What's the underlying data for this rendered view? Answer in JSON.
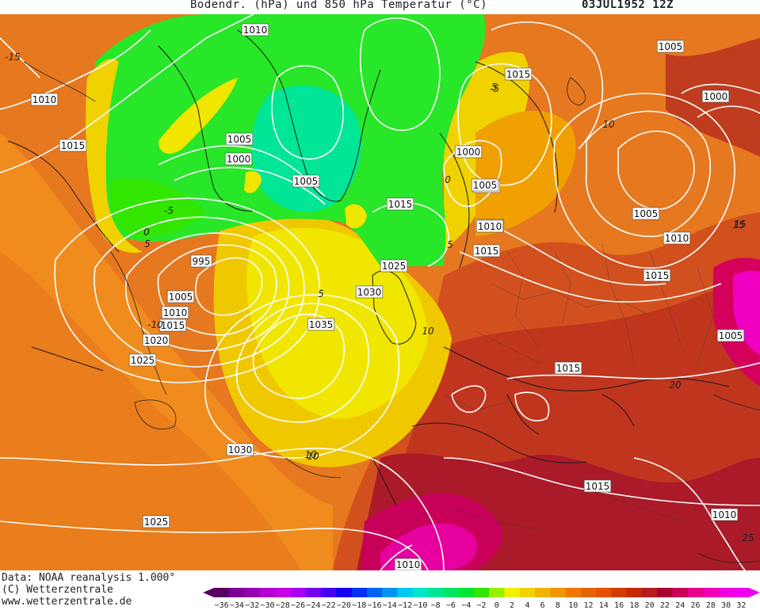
{
  "header": {
    "title": "Bodendr. (hPa) und 850 hPa Temperatur (°C)",
    "datetime": "03JUL1952 12Z"
  },
  "footer": {
    "data_source": "Data: NOAA reanalysis 1.000°",
    "copyright": "(C) Wetterzentrale",
    "website": "www.wetterzentrale.de"
  },
  "colorbar": {
    "labels": [
      "-36",
      "-34",
      "-32",
      "-30",
      "-28",
      "-26",
      "-24",
      "-22",
      "-20",
      "-18",
      "-16",
      "-14",
      "-12",
      "-10",
      "-8",
      "-6",
      "-4",
      "-2",
      "0",
      "2",
      "4",
      "6",
      "8",
      "10",
      "12",
      "14",
      "16",
      "18",
      "20",
      "22",
      "24",
      "26",
      "28",
      "30",
      "32"
    ],
    "colors": [
      "#5a0064",
      "#7d0096",
      "#9600b4",
      "#b400d2",
      "#c800e6",
      "#aa00f0",
      "#7800f0",
      "#4600f0",
      "#1400f0",
      "#0032f0",
      "#0064f0",
      "#0096f0",
      "#00c8f0",
      "#00e6c8",
      "#00e696",
      "#00e664",
      "#00e632",
      "#32e600",
      "#96f000",
      "#f0f000",
      "#f0d200",
      "#f0b400",
      "#f09600",
      "#f07800",
      "#e66400",
      "#e65000",
      "#d23c00",
      "#c82800",
      "#b41e1e",
      "#aa0032",
      "#c8005a",
      "#e6008c",
      "#f000b4",
      "#f000dc",
      "#f000f0"
    ]
  },
  "map": {
    "isobar_labels": [
      "1010",
      "1005",
      "1000",
      "1005",
      "1010",
      "1005",
      "1015",
      "1025",
      "1030",
      "1035",
      "995",
      "1005",
      "1010",
      "1015",
      "1020",
      "1025",
      "1030",
      "1025",
      "1015",
      "1000",
      "1005",
      "1010",
      "1015",
      "1005",
      "1000",
      "1005",
      "1010",
      "1015",
      "1005",
      "1015",
      "1015",
      "1010",
      "1010",
      "1010",
      "1015"
    ],
    "temperature_labels": [
      "-15",
      "-10",
      "-5",
      "0",
      "5",
      "10",
      "15",
      "20",
      "25",
      "0",
      "-5",
      "5",
      "10",
      "5",
      "10",
      "15",
      "10",
      "5"
    ]
  }
}
